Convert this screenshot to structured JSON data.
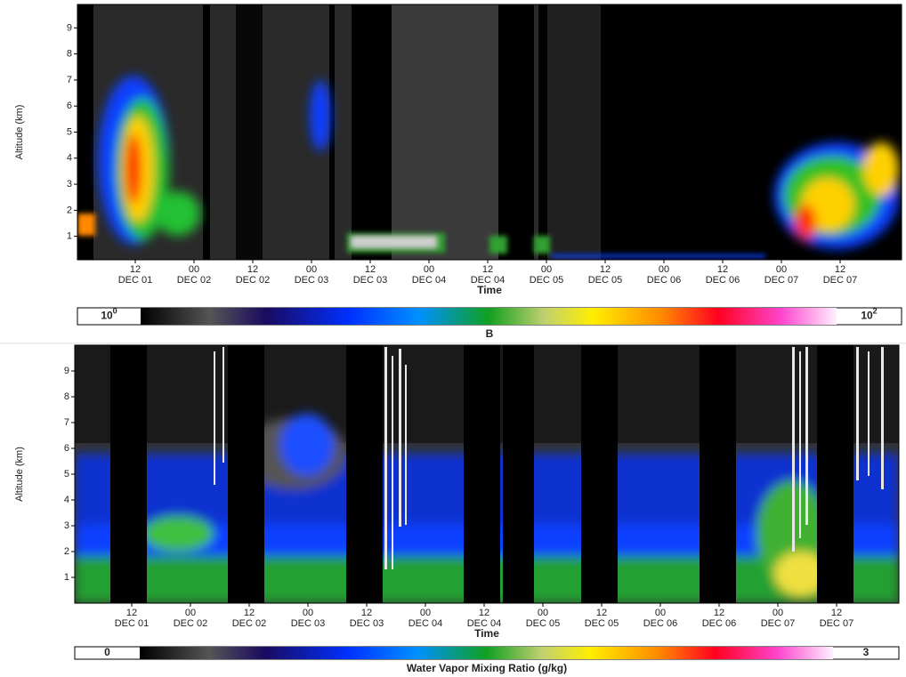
{
  "chart_data": [
    {
      "type": "heatmap",
      "y_label": "Altitude (km)",
      "x_label": "Time",
      "ylim": [
        0.1,
        9.9
      ],
      "yticks": [
        1,
        2,
        3,
        4,
        5,
        6,
        7,
        8,
        9
      ],
      "xticks": [
        [
          "12",
          "DEC 01"
        ],
        [
          "00",
          "DEC 02"
        ],
        [
          "12",
          "DEC 02"
        ],
        [
          "00",
          "DEC 03"
        ],
        [
          "12",
          "DEC 03"
        ],
        [
          "00",
          "DEC 04"
        ],
        [
          "12",
          "DEC 04"
        ],
        [
          "00",
          "DEC 05"
        ],
        [
          "12",
          "DEC 05"
        ],
        [
          "00",
          "DEC 06"
        ],
        [
          "12",
          "DEC 06"
        ],
        [
          "00",
          "DEC 07"
        ],
        [
          "12",
          "DEC 07"
        ]
      ],
      "colorbar": {
        "label": "B",
        "log": true,
        "ends": [
          {
            "base": "10",
            "exponent": "0"
          },
          {
            "base": "10",
            "exponent": "2"
          }
        ]
      }
    },
    {
      "type": "heatmap",
      "y_label": "Altitude (km)",
      "x_label": "Time",
      "ylim": [
        0,
        10
      ],
      "yticks": [
        1,
        2,
        3,
        4,
        5,
        6,
        7,
        8,
        9
      ],
      "xticks": [
        [
          "12",
          "DEC 01"
        ],
        [
          "00",
          "DEC 02"
        ],
        [
          "12",
          "DEC 02"
        ],
        [
          "00",
          "DEC 03"
        ],
        [
          "12",
          "DEC 03"
        ],
        [
          "00",
          "DEC 04"
        ],
        [
          "12",
          "DEC 04"
        ],
        [
          "00",
          "DEC 05"
        ],
        [
          "12",
          "DEC 05"
        ],
        [
          "00",
          "DEC 06"
        ],
        [
          "12",
          "DEC 06"
        ],
        [
          "00",
          "DEC 07"
        ],
        [
          "12",
          "DEC 07"
        ]
      ],
      "colorbar": {
        "label": "Water Vapor Mixing Ratio (g/kg)",
        "log": false,
        "ends": [
          0,
          3
        ]
      }
    }
  ]
}
